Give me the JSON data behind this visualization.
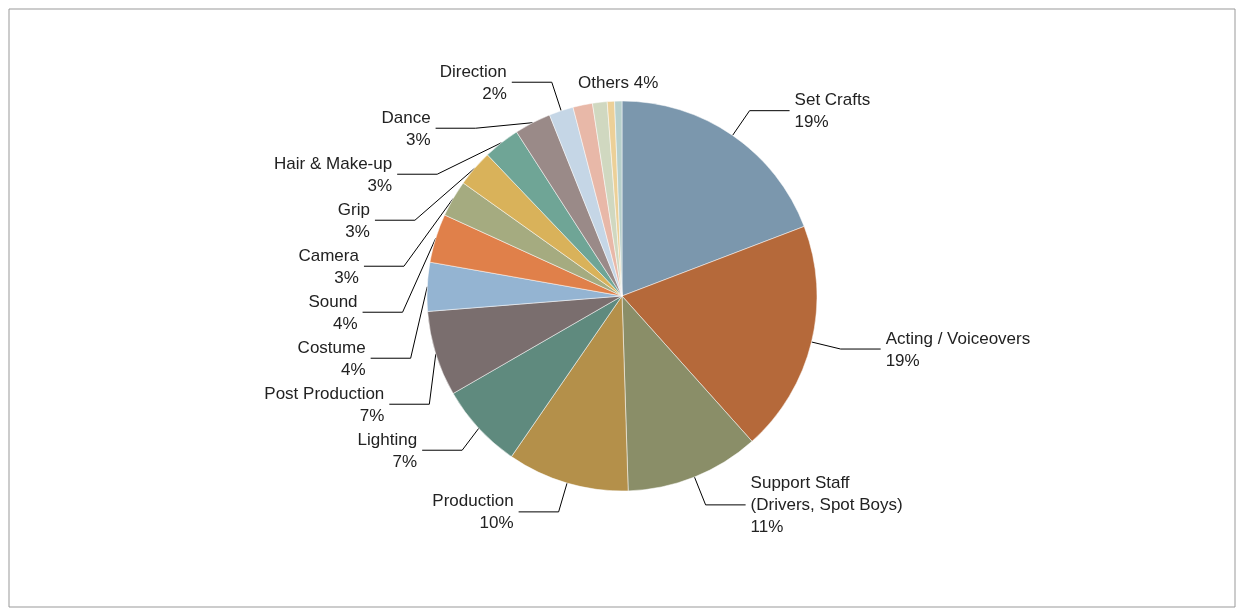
{
  "chart_data": {
    "type": "pie",
    "categories": [
      "Set Crafts",
      "Acting / Voiceovers",
      "Support Staff\n(Drivers, Spot Boys)",
      "Production",
      "Lighting",
      "Post Production",
      "Costume",
      "Sound",
      "Camera",
      "Grip",
      "Hair & Make-up",
      "Dance",
      "Direction",
      null,
      null,
      null,
      null
    ],
    "values": [
      19,
      19,
      11,
      10,
      7,
      7,
      4,
      4,
      3,
      3,
      3,
      3,
      2,
      1.6,
      1.2,
      0.6,
      0.6
    ],
    "colors": [
      "#7b97ad",
      "#b5693a",
      "#8a8e68",
      "#b4904a",
      "#5f8a7e",
      "#7a6e6e",
      "#94b4d2",
      "#e0804a",
      "#a5ab80",
      "#d9b25a",
      "#6fa596",
      "#9a8a88",
      "#c5d6e6",
      "#e8b8a8",
      "#d0d8c0",
      "#ecd098",
      "#b8d0cc"
    ],
    "annotations": [
      "Others 4%"
    ],
    "value_labels": [
      "19%",
      "19%",
      "11%",
      "10%",
      "7%",
      "7%",
      "4%",
      "4%",
      "3%",
      "3%",
      "3%",
      "3%",
      "2%",
      null,
      null,
      null,
      null
    ],
    "legend": false
  }
}
